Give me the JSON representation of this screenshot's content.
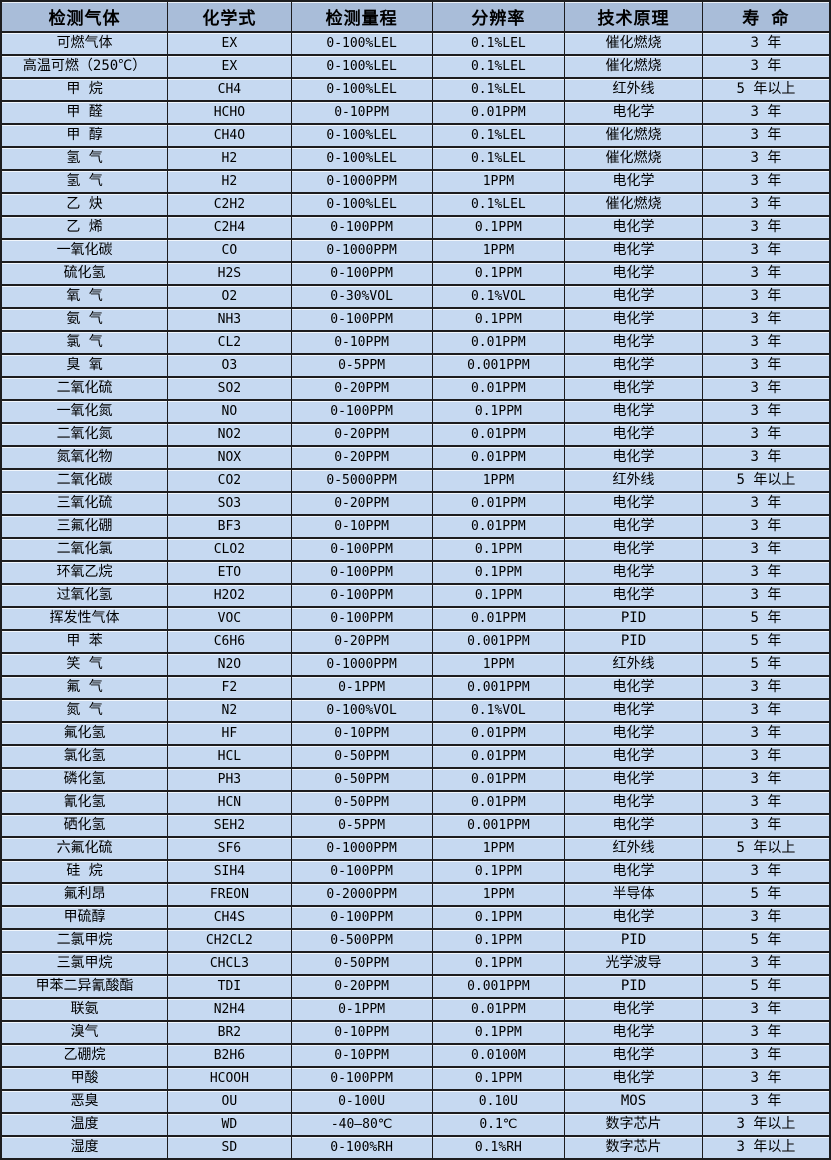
{
  "colors": {
    "header_bg": "#a9bdd9",
    "row_bg": "#c6d9f1",
    "border": "#1d1d1f",
    "text": "#000000"
  },
  "chart_data": {
    "type": "table",
    "title": "",
    "columns": [
      "检测气体",
      "化学式",
      "检测量程",
      "分辨率",
      "技术原理",
      "寿 命"
    ],
    "column_keys": [
      "gas",
      "formula",
      "range",
      "resolution",
      "principle",
      "lifespan"
    ],
    "rows": [
      [
        "可燃气体",
        "EX",
        "0-100%LEL",
        "0.1%LEL",
        "催化燃烧",
        "3 年"
      ],
      [
        "高温可燃（250℃）",
        "EX",
        "0-100%LEL",
        "0.1%LEL",
        "催化燃烧",
        "3 年"
      ],
      [
        "甲 烷",
        "CH4",
        "0-100%LEL",
        "0.1%LEL",
        "红外线",
        "5 年以上"
      ],
      [
        "甲 醛",
        "HCHO",
        "0-10PPM",
        "0.01PPM",
        "电化学",
        "3 年"
      ],
      [
        "甲 醇",
        "CH4O",
        "0-100%LEL",
        "0.1%LEL",
        "催化燃烧",
        "3 年"
      ],
      [
        "氢 气",
        "H2",
        "0-100%LEL",
        "0.1%LEL",
        "催化燃烧",
        "3 年"
      ],
      [
        "氢 气",
        "H2",
        "0-1000PPM",
        "1PPM",
        "电化学",
        "3 年"
      ],
      [
        "乙 炔",
        "C2H2",
        "0-100%LEL",
        "0.1%LEL",
        "催化燃烧",
        "3 年"
      ],
      [
        "乙 烯",
        "C2H4",
        "0-100PPM",
        "0.1PPM",
        "电化学",
        "3 年"
      ],
      [
        "一氧化碳",
        "CO",
        "0-1000PPM",
        "1PPM",
        "电化学",
        "3 年"
      ],
      [
        "硫化氢",
        "H2S",
        "0-100PPM",
        "0.1PPM",
        "电化学",
        "3 年"
      ],
      [
        "氧 气",
        "O2",
        "0-30%VOL",
        "0.1%VOL",
        "电化学",
        "3 年"
      ],
      [
        "氨 气",
        "NH3",
        "0-100PPM",
        "0.1PPM",
        "电化学",
        "3 年"
      ],
      [
        "氯 气",
        "CL2",
        "0-10PPM",
        "0.01PPM",
        "电化学",
        "3 年"
      ],
      [
        "臭 氧",
        "O3",
        "0-5PPM",
        "0.001PPM",
        "电化学",
        "3 年"
      ],
      [
        "二氧化硫",
        "SO2",
        "0-20PPM",
        "0.01PPM",
        "电化学",
        "3 年"
      ],
      [
        "一氧化氮",
        "NO",
        "0-100PPM",
        "0.1PPM",
        "电化学",
        "3 年"
      ],
      [
        "二氧化氮",
        "NO2",
        "0-20PPM",
        "0.01PPM",
        "电化学",
        "3 年"
      ],
      [
        "氮氧化物",
        "NOX",
        "0-20PPM",
        "0.01PPM",
        "电化学",
        "3 年"
      ],
      [
        "二氧化碳",
        "CO2",
        "0-5000PPM",
        "1PPM",
        "红外线",
        "5 年以上"
      ],
      [
        "三氧化硫",
        "SO3",
        "0-20PPM",
        "0.01PPM",
        "电化学",
        "3 年"
      ],
      [
        "三氟化硼",
        "BF3",
        "0-10PPM",
        "0.01PPM",
        "电化学",
        "3 年"
      ],
      [
        "二氧化氯",
        "CLO2",
        "0-100PPM",
        "0.1PPM",
        "电化学",
        "3 年"
      ],
      [
        "环氧乙烷",
        "ETO",
        "0-100PPM",
        "0.1PPM",
        "电化学",
        "3 年"
      ],
      [
        "过氧化氢",
        "H2O2",
        "0-100PPM",
        "0.1PPM",
        "电化学",
        "3 年"
      ],
      [
        "挥发性气体",
        "VOC",
        "0-100PPM",
        "0.01PPM",
        "PID",
        "5 年"
      ],
      [
        "甲 苯",
        "C6H6",
        "0-20PPM",
        "0.001PPM",
        "PID",
        "5 年"
      ],
      [
        "笑 气",
        "N2O",
        "0-1000PPM",
        "1PPM",
        "红外线",
        "5 年"
      ],
      [
        "氟 气",
        "F2",
        "0-1PPM",
        "0.001PPM",
        "电化学",
        "3 年"
      ],
      [
        "氮 气",
        "N2",
        "0-100%VOL",
        "0.1%VOL",
        "电化学",
        "3 年"
      ],
      [
        "氟化氢",
        "HF",
        "0-10PPM",
        "0.01PPM",
        "电化学",
        "3 年"
      ],
      [
        "氯化氢",
        "HCL",
        "0-50PPM",
        "0.01PPM",
        "电化学",
        "3 年"
      ],
      [
        "磷化氢",
        "PH3",
        "0-50PPM",
        "0.01PPM",
        "电化学",
        "3 年"
      ],
      [
        "氰化氢",
        "HCN",
        "0-50PPM",
        "0.01PPM",
        "电化学",
        "3 年"
      ],
      [
        "硒化氢",
        "SEH2",
        "0-5PPM",
        "0.001PPM",
        "电化学",
        "3 年"
      ],
      [
        "六氟化硫",
        "SF6",
        "0-1000PPM",
        "1PPM",
        "红外线",
        "5 年以上"
      ],
      [
        "硅 烷",
        "SIH4",
        "0-100PPM",
        "0.1PPM",
        "电化学",
        "3 年"
      ],
      [
        "氟利昂",
        "FREON",
        "0-2000PPM",
        "1PPM",
        "半导体",
        "5 年"
      ],
      [
        "甲硫醇",
        "CH4S",
        "0-100PPM",
        "0.1PPM",
        "电化学",
        "3 年"
      ],
      [
        "二氯甲烷",
        "CH2CL2",
        "0-500PPM",
        "0.1PPM",
        "PID",
        "5 年"
      ],
      [
        "三氯甲烷",
        "CHCL3",
        "0-50PPM",
        "0.1PPM",
        "光学波导",
        "3 年"
      ],
      [
        "甲苯二异氰酸酯",
        "TDI",
        "0-20PPM",
        "0.001PPM",
        "PID",
        "5 年"
      ],
      [
        "联氨",
        "N2H4",
        "0-1PPM",
        "0.01PPM",
        "电化学",
        "3 年"
      ],
      [
        "溴气",
        "BR2",
        "0-10PPM",
        "0.1PPM",
        "电化学",
        "3 年"
      ],
      [
        "乙硼烷",
        "B2H6",
        "0-10PPM",
        "0.0100M",
        "电化学",
        "3 年"
      ],
      [
        "甲酸",
        "HCOOH",
        "0-100PPM",
        "0.1PPM",
        "电化学",
        "3 年"
      ],
      [
        "恶臭",
        "OU",
        "0-100U",
        "0.10U",
        "MOS",
        "3 年"
      ],
      [
        "温度",
        "WD",
        "-40—80℃",
        "0.1℃",
        "数字芯片",
        "3 年以上"
      ],
      [
        "湿度",
        "SD",
        "0-100%RH",
        "0.1%RH",
        "数字芯片",
        "3 年以上"
      ]
    ]
  }
}
